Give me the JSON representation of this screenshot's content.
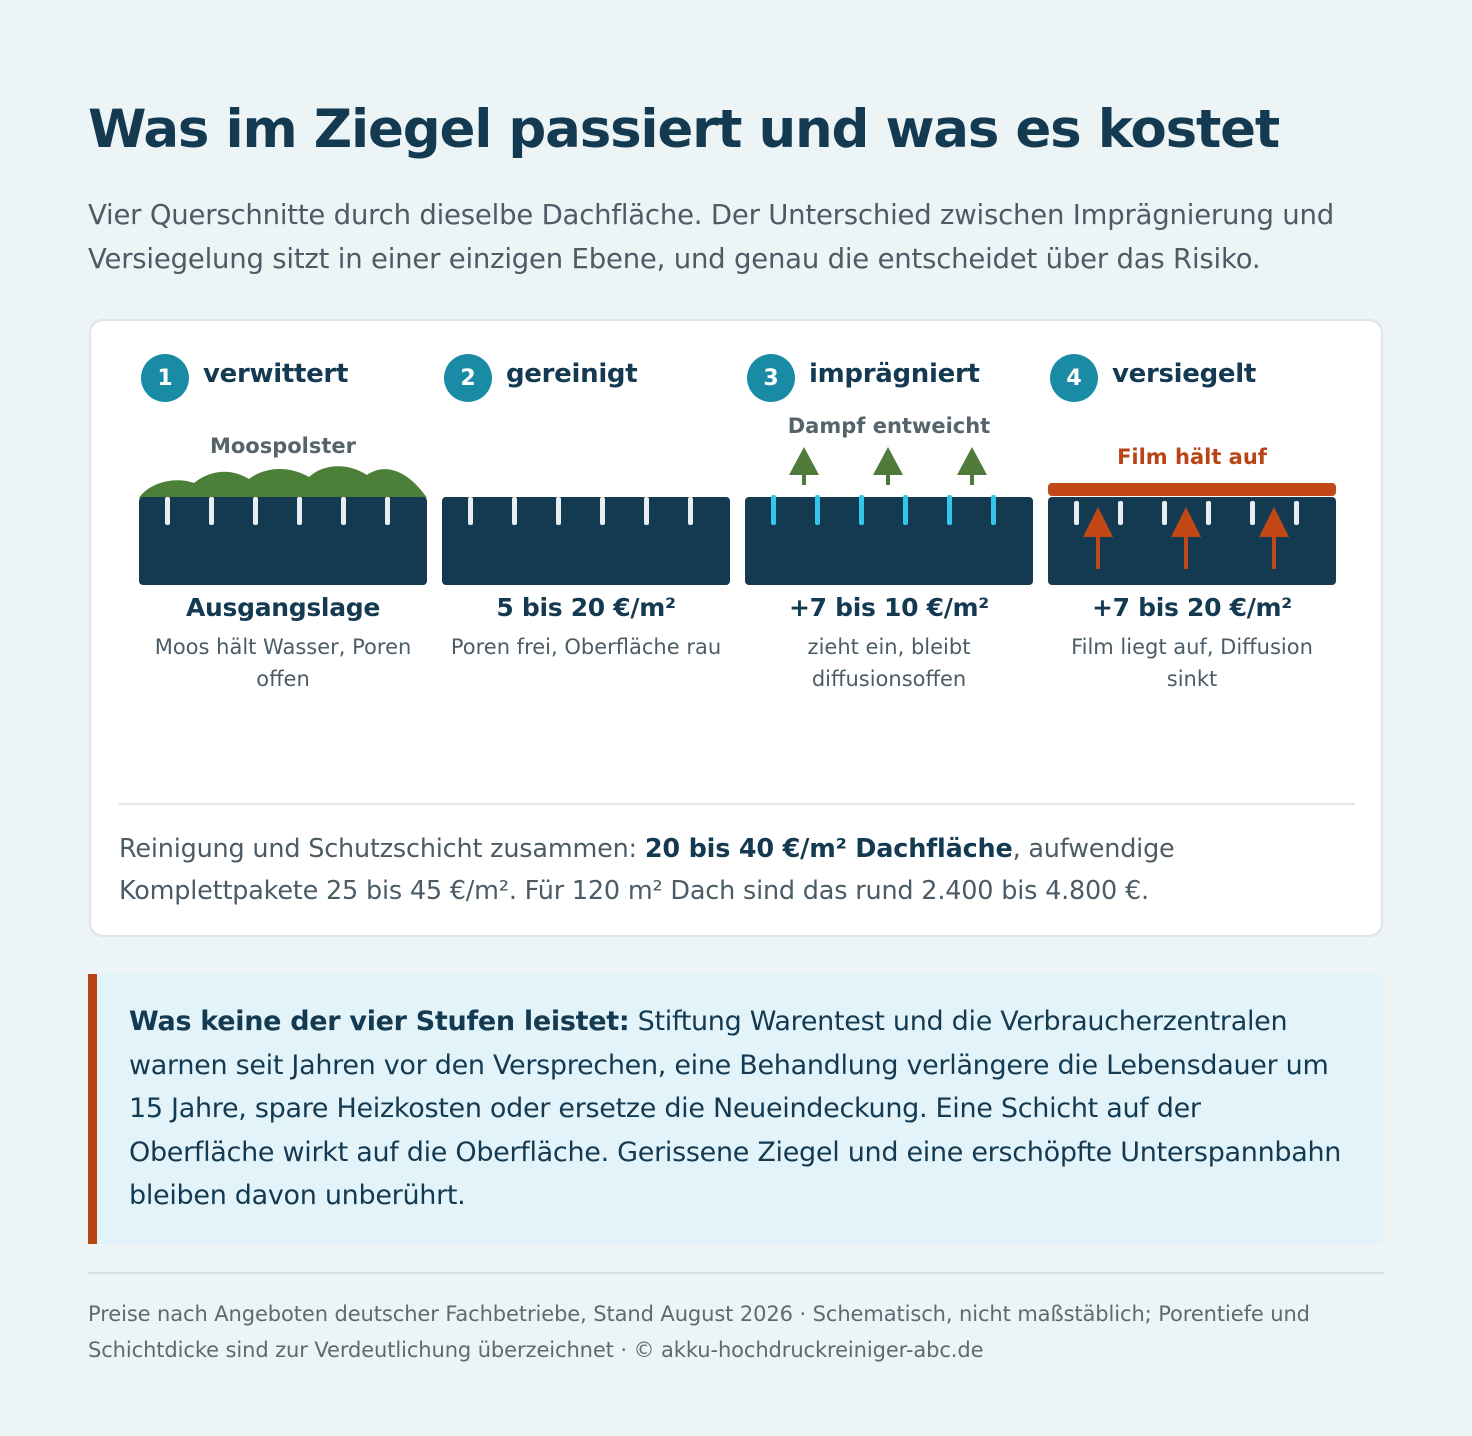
{
  "header": {
    "title": "Was im Ziegel passiert und was es kostet",
    "subtitle": "Vier Querschnitte durch dieselbe Dachfläche. Der Unterschied zwischen Imprägnierung und Versiegelung sitzt in einer einzigen Ebene, und genau die entscheidet über das Risiko."
  },
  "colors": {
    "tile": "#143a52",
    "badge": "#1a8ba5",
    "moss": "#4c8039",
    "pore_open": "#e8eef1",
    "pore_impregnated": "#33c6e8",
    "vapor_arrow": "#4f7a38",
    "film": "#c24716",
    "film_label": "#b94516"
  },
  "stages": [
    {
      "number": "1",
      "title": "verwittert",
      "diagram_label": "Moospolster",
      "caption_title": "Ausgangslage",
      "caption_desc": "Moos hält Wasser, Poren offen"
    },
    {
      "number": "2",
      "title": "gereinigt",
      "diagram_label": "",
      "caption_title": "5 bis 20 €/m²",
      "caption_desc": "Poren frei, Oberfläche rau"
    },
    {
      "number": "3",
      "title": "imprägniert",
      "diagram_label": "Dampf entweicht",
      "caption_title": "+7 bis 10 €/m²",
      "caption_desc": "zieht ein, bleibt diffusionsoffen"
    },
    {
      "number": "4",
      "title": "versiegelt",
      "diagram_label": "Film hält auf",
      "caption_title": "+7 bis 20 €/m²",
      "caption_desc": "Film liegt auf, Diffusion sinkt"
    }
  ],
  "summary": {
    "prefix": "Reinigung und Schutzschicht zusammen: ",
    "bold": "20 bis 40 €/m² Dachfläche",
    "suffix": ", aufwendige Komplettpakete 25 bis 45 €/m². Für 120 m² Dach sind das rund 2.400 bis 4.800 €."
  },
  "note": {
    "bold": "Was keine der vier Stufen leistet:",
    "text": " Stiftung Warentest und die Verbraucherzentralen warnen seit Jahren vor den Versprechen, eine Behandlung verlängere die Lebensdauer um 15 Jahre, spare Heizkosten oder ersetze die Neueindeckung. Eine Schicht auf der Oberfläche wirkt auf die Oberfläche. Gerissene Ziegel und eine erschöpfte Unterspannbahn bleiben davon unberührt."
  },
  "footer": {
    "text": "Preise nach Angeboten deutscher Fachbetriebe, Stand August 2026 · Schematisch, nicht maßstäblich; Porentiefe und Schichtdicke sind zur Verdeutlichung überzeichnet · © akku-hochdruckreiniger-abc.de"
  }
}
